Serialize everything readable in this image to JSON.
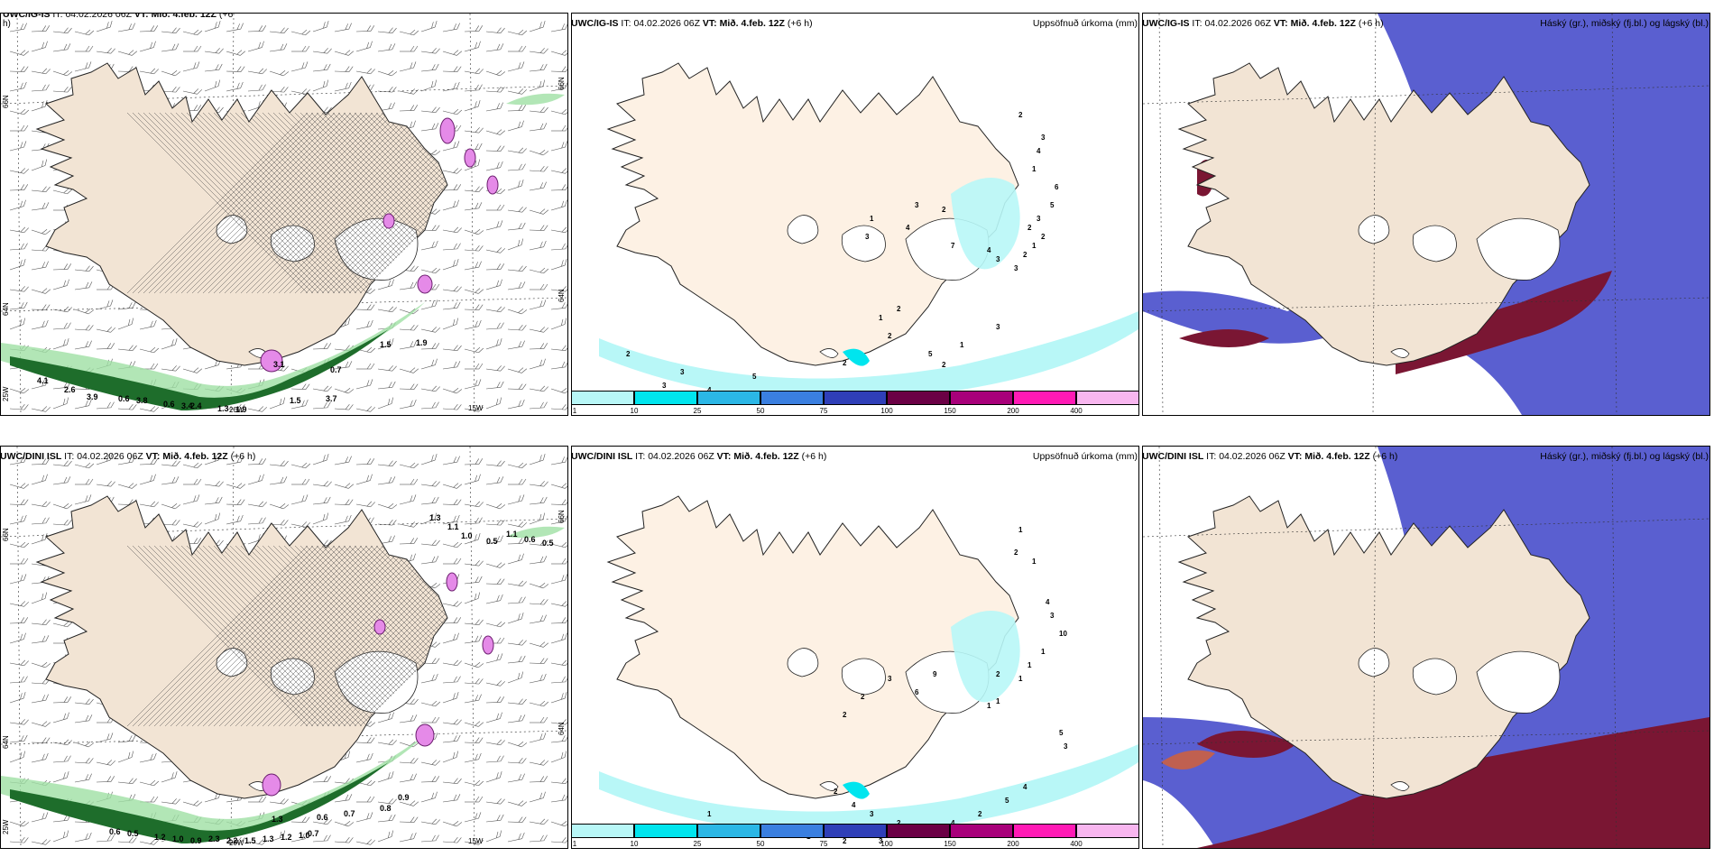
{
  "panels": [
    {
      "id": "r1c1",
      "model": "UWC/IG-IS",
      "it_label": "IT:",
      "it": "04.02.2026 06Z",
      "vt_label": "VT:",
      "vt": "Mið. 4.feb. 12Z",
      "lead": "(+6",
      "lead2": "h)",
      "right": ""
    },
    {
      "id": "r1c2",
      "model": "UWC/IG-IS",
      "it_label": "IT:",
      "it": "04.02.2026 06Z",
      "vt_label": "VT:",
      "vt": "Mið. 4.feb. 12Z",
      "lead": "(+6 h)",
      "right": "Uppsöfnuð úrkoma (mm)"
    },
    {
      "id": "r1c3",
      "model": "UWC/IG-IS",
      "it_label": "IT:",
      "it": "04.02.2026 06Z",
      "vt_label": "VT:",
      "vt": "Mið. 4.feb. 12Z",
      "lead": "(+6 h)",
      "right": "Háský (gr.), miðský (fj.bl.) og lágský (bl.)"
    },
    {
      "id": "r2c1",
      "model": "UWC/DINI ISL",
      "it_label": "IT:",
      "it": "04.02.2026 06Z",
      "vt_label": "VT:",
      "vt": "Mið. 4.feb. 12Z",
      "lead": "(+6 h)",
      "right": ""
    },
    {
      "id": "r2c2",
      "model": "UWC/DINI ISL",
      "it_label": "IT:",
      "it": "04.02.2026 06Z",
      "vt_label": "VT:",
      "vt": "Mið. 4.feb. 12Z",
      "lead": "(+6 h)",
      "right": "Uppsöfnuð úrkoma (mm)"
    },
    {
      "id": "r2c3",
      "model": "UWC/DINI ISL",
      "it_label": "IT:",
      "it": "04.02.2026 06Z",
      "vt_label": "VT:",
      "vt": "Mið. 4.feb. 12Z",
      "lead": "(+6 h)",
      "right": "Háský (gr.), miðský (fj.bl.) og lágský (bl.)"
    }
  ],
  "axis_labels": {
    "lat66": "66N",
    "lat64": "64N",
    "lon25": "25W",
    "lon20": "20W",
    "lon15": "15W"
  },
  "colorbar": {
    "labels": [
      "1",
      "10",
      "25",
      "50",
      "75",
      "100",
      "150",
      "200",
      "400"
    ],
    "colors": [
      "#b8f7f7",
      "#00e5ee",
      "#2bb7e6",
      "#3a7fe0",
      "#2f3fb8",
      "#6b0045",
      "#a8007a",
      "#ff1ab5",
      "#f8b6ef"
    ]
  },
  "precip_ig": {
    "labels": [
      "2",
      "3",
      "4",
      "1",
      "6",
      "5",
      "3",
      "2",
      "1",
      "2",
      "2",
      "3",
      "3",
      "4",
      "7",
      "2",
      "3",
      "4",
      "1",
      "3",
      "2",
      "5",
      "2",
      "1",
      "3",
      "2",
      "1",
      "2",
      "5",
      "3",
      "2",
      "3",
      "4",
      "2",
      "1"
    ]
  },
  "precip_dini": {
    "labels": [
      "1",
      "2",
      "1",
      "4",
      "3",
      "10",
      "1",
      "1",
      "1",
      "2",
      "1",
      "1",
      "9",
      "6",
      "3",
      "2",
      "2",
      "5",
      "3",
      "4",
      "5",
      "2",
      "4",
      "3",
      "2",
      "3",
      "4",
      "2",
      "1",
      "2",
      "2",
      "1",
      "2",
      "3"
    ]
  },
  "wind_ig": {
    "labels": [
      "3.1",
      "0.7",
      "1.5",
      "1.9",
      "4.1",
      "2.6",
      "3.9",
      "0.6",
      "2.4",
      "1.9",
      "1.5",
      "3.7",
      "3.8",
      "0.6",
      "3.4",
      "1.3"
    ]
  },
  "wind_dini": {
    "labels": [
      "1.3",
      "1.1",
      "1.0",
      "0.5",
      "0.6",
      "0.5",
      "1.1",
      "0.9",
      "0.8",
      "0.7",
      "0.6",
      "1.3",
      "2.3",
      "2.2",
      "1.5",
      "1.3",
      "1.2",
      "1.0",
      "0.7",
      "0.6",
      "0.5",
      "1.2",
      "1.0",
      "0.9"
    ]
  }
}
